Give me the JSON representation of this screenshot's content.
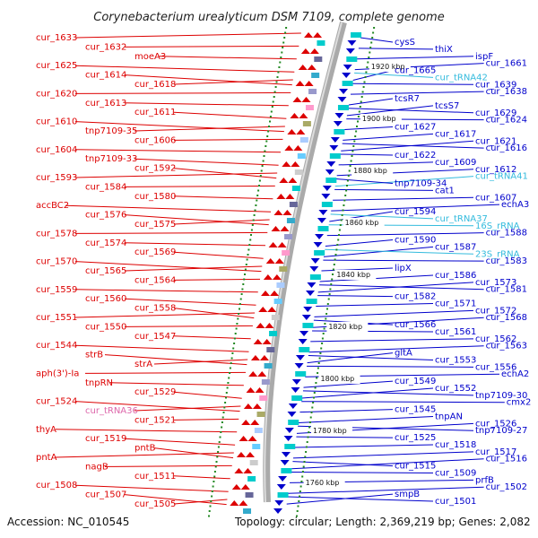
{
  "title": "Corynebacterium urealyticum DSM 7109, complete genome",
  "accession": "Accession: NC_010545",
  "topology": "Topology: circular; Length: 2,369,219 bp; Genes: 2,082",
  "colors": {
    "forward": "#dd0000",
    "reverse": "#0000cc",
    "rna": "#33bbdd",
    "rna_left": "#dd66aa",
    "axis": "#999999",
    "tick": "#228822"
  },
  "kbp_marks": [
    "1920 kbp",
    "1900 kbp",
    "1880 kbp",
    "1860 kbp",
    "1840 kbp",
    "1820 kbp",
    "1800 kbp",
    "1780 kbp",
    "1760 kbp"
  ],
  "left_genes": [
    "cur_1633",
    "cur_1632",
    "moeA3",
    "cur_1625",
    "cur_1614",
    "cur_1618",
    "cur_1620",
    "cur_1613",
    "cur_1611",
    "cur_1610",
    "tnp7109-35",
    "cur_1606",
    "cur_1604",
    "tnp7109-33",
    "cur_1592",
    "cur_1593",
    "cur_1584",
    "cur_1580",
    "accBC2",
    "cur_1576",
    "cur_1575",
    "cur_1578",
    "cur_1574",
    "cur_1569",
    "cur_1570",
    "cur_1565",
    "cur_1564",
    "cur_1559",
    "cur_1560",
    "cur_1558",
    "cur_1551",
    "cur_1550",
    "cur_1547",
    "cur_1544",
    "strB",
    "strA",
    "aph(3')-Ia",
    "tnpRN",
    "cur_1529",
    "cur_1524",
    "cur_tRNA36",
    "cur_1521",
    "thyA",
    "cur_1519",
    "pntB",
    "pntA",
    "nagB",
    "cur_1511",
    "cur_1508",
    "cur_1507",
    "cur_1505"
  ],
  "right_genes": [
    "cysS",
    "thiX",
    "ispF",
    "cur_1661",
    "cur_1665",
    "cur_tRNA42",
    "cur_1639",
    "cur_1638",
    "tcsR7",
    "tcsS7",
    "cur_1629",
    "cur_1624",
    "cur_1627",
    "cur_1617",
    "cur_1621",
    "cur_1616",
    "cur_1622",
    "cur_1609",
    "cur_1612",
    "cur_tRNA41",
    "tnp7109-34",
    "cat1",
    "cur_1607",
    "echA3",
    "cur_1594",
    "cur_tRNA37",
    "16S_rRNA",
    "cur_1588",
    "cur_1590",
    "cur_1587",
    "23S_rRNA",
    "cur_1583",
    "lipX",
    "cur_1586",
    "cur_1573",
    "cur_1581",
    "cur_1582",
    "cur_1571",
    "cur_1572",
    "cur_1568",
    "cur_1566",
    "cur_1561",
    "cur_1562",
    "cur_1563",
    "gltA",
    "cur_1553",
    "cur_1556",
    "echA2",
    "cur_1549",
    "cur_1552",
    "tnp7109-30",
    "cmx2",
    "cur_1545",
    "tnpAN",
    "cur_1526",
    "tnp7109-27",
    "cur_1525",
    "cur_1518",
    "cur_1517",
    "cur_1516",
    "cur_1515",
    "cur_1509",
    "prfB",
    "cur_1502",
    "smpB",
    "cur_1501"
  ]
}
